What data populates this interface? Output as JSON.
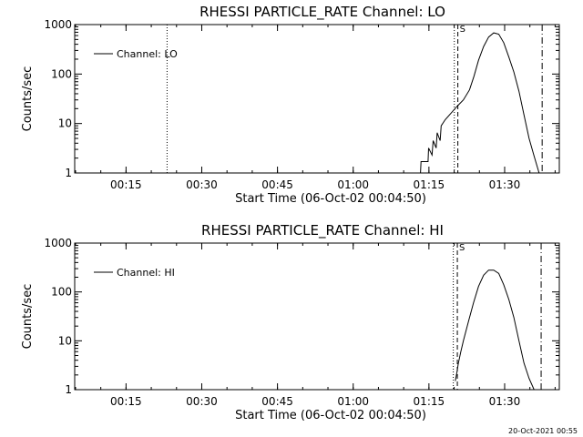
{
  "footer": {
    "timestamp": "20-Oct-2021 00:55"
  },
  "chart_data": [
    {
      "type": "line",
      "title": "RHESSI PARTICLE_RATE Channel: LO",
      "xlabel": "Start Time (06-Oct-02 00:04:50)",
      "ylabel": "Counts/sec",
      "yscale": "log",
      "ylim": [
        1,
        1000
      ],
      "xlim_minutes_since_start": [
        0,
        96
      ],
      "x_tick_labels": [
        "00:15",
        "00:30",
        "00:45",
        "01:00",
        "01:15",
        "01:30"
      ],
      "x_tick_minutes_since_start": [
        10.17,
        25.17,
        40.17,
        55.17,
        70.17,
        85.17
      ],
      "y_tick_labels": [
        "1",
        "10",
        "100",
        "1000"
      ],
      "y_ticks": [
        1,
        10,
        100,
        1000
      ],
      "legend": {
        "position": "top-left",
        "entries": [
          "Channel: LO"
        ]
      },
      "series": [
        {
          "name": "Channel: LO",
          "x": [
            68.5,
            68.6,
            70.0,
            70.1,
            70.8,
            71.0,
            71.6,
            71.8,
            72.4,
            72.6,
            73.4,
            74.5,
            75.7,
            77.0,
            78.2,
            79.1,
            80.0,
            81.0,
            82.0,
            83.0,
            84.0,
            85.0,
            86.0,
            87.0,
            88.0,
            89.0,
            90.0,
            91.0,
            92.0
          ],
          "y": [
            1,
            1.7,
            1.7,
            3.2,
            2.3,
            4.5,
            3.2,
            6.5,
            4.5,
            9,
            12,
            16,
            22,
            30,
            48,
            90,
            190,
            360,
            560,
            680,
            640,
            430,
            220,
            110,
            45,
            15,
            5,
            2.2,
            1
          ]
        }
      ],
      "vertical_lines": [
        {
          "x_minutes_since_start": 18.3,
          "style": "dotted"
        },
        {
          "x_minutes_since_start": 75.2,
          "style": "dotted"
        },
        {
          "x_minutes_since_start": 75.9,
          "style": "dashed",
          "label": "S"
        },
        {
          "x_minutes_since_start": 92.6,
          "style": "dash-dot"
        }
      ]
    },
    {
      "type": "line",
      "title": "RHESSI PARTICLE_RATE Channel: HI",
      "xlabel": "Start Time (06-Oct-02 00:04:50)",
      "ylabel": "Counts/sec",
      "yscale": "log",
      "ylim": [
        1,
        1000
      ],
      "xlim_minutes_since_start": [
        0,
        96
      ],
      "x_tick_labels": [
        "00:15",
        "00:30",
        "00:45",
        "01:00",
        "01:15",
        "01:30"
      ],
      "x_tick_minutes_since_start": [
        10.17,
        25.17,
        40.17,
        55.17,
        70.17,
        85.17
      ],
      "y_tick_labels": [
        "1",
        "10",
        "100",
        "1000"
      ],
      "y_ticks": [
        1,
        10,
        100,
        1000
      ],
      "legend": {
        "position": "top-left",
        "entries": [
          "Channel: HI"
        ]
      },
      "series": [
        {
          "name": "Channel: HI",
          "x": [
            75.4,
            75.7,
            76.0,
            76.5,
            77.0,
            78.0,
            79.0,
            80.0,
            81.0,
            82.0,
            83.0,
            84.0,
            85.0,
            86.0,
            87.0,
            88.0,
            89.0,
            90.0,
            91.0
          ],
          "y": [
            1.5,
            2.2,
            3.5,
            6,
            10,
            25,
            60,
            130,
            220,
            280,
            280,
            240,
            140,
            70,
            30,
            10,
            3.5,
            1.7,
            1
          ]
        }
      ],
      "vertical_lines": [
        {
          "x_minutes_since_start": 75.0,
          "style": "dotted"
        },
        {
          "x_minutes_since_start": 75.8,
          "style": "dashed",
          "label": "S"
        },
        {
          "x_minutes_since_start": 92.4,
          "style": "dash-dot"
        }
      ]
    }
  ]
}
